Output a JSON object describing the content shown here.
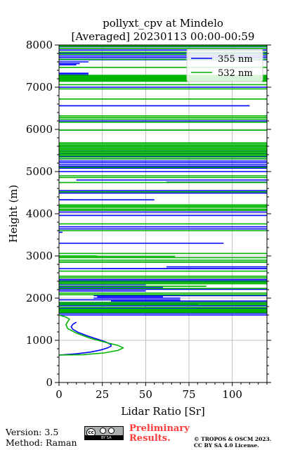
{
  "chart_data": {
    "type": "line",
    "title": [
      "pollyxt_cpv at Mindelo",
      "[Averaged] 20230113 00:00-00:59"
    ],
    "xlabel": "Lidar Ratio [Sr]",
    "ylabel": "Height (m)",
    "xlim": [
      0,
      120
    ],
    "ylim": [
      0,
      8000
    ],
    "xticks": [
      0,
      25,
      50,
      75,
      100
    ],
    "yticks": [
      0,
      1000,
      2000,
      3000,
      4000,
      5000,
      6000,
      7000,
      8000
    ],
    "xtick_labels": [
      "0",
      "25",
      "50",
      "75",
      "100"
    ],
    "ytick_labels": [
      "0",
      "1000",
      "2000",
      "3000",
      "4000",
      "5000",
      "6000",
      "7000",
      "8000"
    ],
    "grid": true,
    "legend_position": "top-right",
    "series": [
      {
        "name": "355 nm",
        "color": "#0000ff",
        "curve": [
          [
            0,
            650
          ],
          [
            10,
            680
          ],
          [
            18,
            720
          ],
          [
            24,
            770
          ],
          [
            28,
            820
          ],
          [
            30,
            860
          ],
          [
            30,
            900
          ],
          [
            27,
            960
          ],
          [
            22,
            1030
          ],
          [
            16,
            1110
          ],
          [
            11,
            1190
          ],
          [
            8,
            1260
          ],
          [
            7,
            1320
          ],
          [
            8,
            1380
          ],
          [
            10,
            1430
          ]
        ],
        "segments": [
          [
            0,
            120,
            7960
          ],
          [
            0,
            120,
            7880
          ],
          [
            0,
            120,
            7800
          ],
          [
            0,
            120,
            7780
          ],
          [
            0,
            120,
            7740
          ],
          [
            0,
            120,
            7700
          ],
          [
            0,
            120,
            7650
          ],
          [
            0,
            17,
            7600
          ],
          [
            0,
            12,
            7560
          ],
          [
            0,
            10,
            7530
          ],
          [
            0,
            17,
            7330
          ],
          [
            0,
            17,
            7300
          ],
          [
            0,
            120,
            7000
          ],
          [
            0,
            110,
            6560
          ],
          [
            0,
            120,
            6200
          ],
          [
            0,
            120,
            5620
          ],
          [
            0,
            120,
            5480
          ],
          [
            0,
            120,
            5420
          ],
          [
            0,
            120,
            5360
          ],
          [
            0,
            120,
            5300
          ],
          [
            0,
            120,
            5250
          ],
          [
            0,
            120,
            5210
          ],
          [
            0,
            120,
            5160
          ],
          [
            0,
            120,
            5120
          ],
          [
            0,
            120,
            5080
          ],
          [
            0,
            120,
            5000
          ],
          [
            10,
            120,
            4800
          ],
          [
            62,
            120,
            4750
          ],
          [
            0,
            120,
            4550
          ],
          [
            0,
            120,
            4490
          ],
          [
            0,
            8,
            4330
          ],
          [
            0,
            55,
            4330
          ],
          [
            0,
            120,
            4040
          ],
          [
            0,
            120,
            3960
          ],
          [
            0,
            120,
            3690
          ],
          [
            0,
            120,
            3640
          ],
          [
            0,
            2,
            3560
          ],
          [
            0,
            95,
            3300
          ],
          [
            0,
            120,
            2700
          ],
          [
            25,
            120,
            2700
          ],
          [
            62,
            120,
            2740
          ],
          [
            0,
            120,
            2440
          ],
          [
            0,
            120,
            2410
          ],
          [
            0,
            120,
            2380
          ],
          [
            0,
            50,
            2330
          ],
          [
            0,
            50,
            2290
          ],
          [
            0,
            60,
            2250
          ],
          [
            0,
            120,
            2210
          ],
          [
            0,
            50,
            2170
          ],
          [
            20,
            120,
            2060
          ],
          [
            22,
            60,
            2030
          ],
          [
            20,
            70,
            2000
          ],
          [
            0,
            70,
            1960
          ],
          [
            30,
            120,
            1930
          ],
          [
            0,
            120,
            1880
          ],
          [
            0,
            80,
            1850
          ],
          [
            0,
            120,
            1820
          ],
          [
            0,
            120,
            1760
          ],
          [
            0,
            120,
            1640
          ],
          [
            0,
            120,
            1600
          ]
        ]
      },
      {
        "name": "532 nm",
        "color": "#00b400",
        "curve": [
          [
            0,
            650
          ],
          [
            14,
            660
          ],
          [
            26,
            700
          ],
          [
            34,
            760
          ],
          [
            37,
            820
          ],
          [
            34,
            880
          ],
          [
            27,
            950
          ],
          [
            18,
            1050
          ],
          [
            10,
            1170
          ],
          [
            5,
            1280
          ],
          [
            4,
            1370
          ],
          [
            5,
            1440
          ],
          [
            6,
            1500
          ],
          [
            4,
            1550
          ],
          [
            0,
            1600
          ]
        ],
        "segments": [
          [
            0,
            120,
            7990
          ],
          [
            0,
            120,
            7970
          ],
          [
            0,
            120,
            7920
          ],
          [
            0,
            120,
            7830
          ],
          [
            0,
            120,
            7780
          ],
          [
            0,
            120,
            7660
          ],
          [
            0,
            120,
            7470
          ],
          [
            0,
            120,
            7280
          ],
          [
            0,
            120,
            7260
          ],
          [
            0,
            120,
            7240
          ],
          [
            0,
            120,
            7220
          ],
          [
            0,
            120,
            7200
          ],
          [
            0,
            120,
            7180
          ],
          [
            0,
            120,
            7160
          ],
          [
            0,
            120,
            7140
          ],
          [
            0,
            120,
            7060
          ],
          [
            0,
            120,
            6960
          ],
          [
            0,
            120,
            6720
          ],
          [
            0,
            120,
            6320
          ],
          [
            0,
            120,
            6280
          ],
          [
            0,
            120,
            6240
          ],
          [
            0,
            120,
            6170
          ],
          [
            0,
            120,
            5980
          ],
          [
            0,
            120,
            5680
          ],
          [
            0,
            120,
            5650
          ],
          [
            0,
            120,
            5620
          ],
          [
            0,
            120,
            5590
          ],
          [
            0,
            120,
            5560
          ],
          [
            0,
            120,
            5530
          ],
          [
            0,
            120,
            5500
          ],
          [
            0,
            120,
            5470
          ],
          [
            0,
            120,
            5440
          ],
          [
            0,
            120,
            5410
          ],
          [
            0,
            120,
            5380
          ],
          [
            0,
            120,
            5340
          ],
          [
            0,
            120,
            5300
          ],
          [
            0,
            120,
            5100
          ],
          [
            0,
            120,
            4900
          ],
          [
            0,
            120,
            4860
          ],
          [
            0,
            120,
            4740
          ],
          [
            0,
            120,
            4520
          ],
          [
            0,
            120,
            4210
          ],
          [
            0,
            120,
            4180
          ],
          [
            0,
            120,
            4150
          ],
          [
            0,
            120,
            4110
          ],
          [
            0,
            120,
            4080
          ],
          [
            0,
            120,
            3760
          ],
          [
            0,
            120,
            3600
          ],
          [
            0,
            120,
            3060
          ],
          [
            0,
            22,
            3000
          ],
          [
            0,
            67,
            2990
          ],
          [
            0,
            120,
            2960
          ],
          [
            0,
            120,
            2900
          ],
          [
            0,
            120,
            2860
          ],
          [
            0,
            120,
            2850
          ],
          [
            0,
            120,
            2640
          ],
          [
            0,
            120,
            2520
          ],
          [
            0,
            120,
            2480
          ],
          [
            0,
            120,
            2400
          ],
          [
            0,
            120,
            2370
          ],
          [
            0,
            120,
            2340
          ],
          [
            0,
            85,
            2280
          ],
          [
            0,
            120,
            2230
          ],
          [
            0,
            120,
            2120
          ],
          [
            0,
            120,
            2080
          ],
          [
            0,
            120,
            1900
          ],
          [
            0,
            120,
            1870
          ],
          [
            0,
            120,
            1840
          ],
          [
            0,
            120,
            1780
          ],
          [
            0,
            120,
            1740
          ],
          [
            0,
            120,
            1720
          ],
          [
            0,
            120,
            1700
          ],
          [
            0,
            120,
            1680
          ],
          [
            0,
            120,
            1660
          ]
        ]
      }
    ]
  },
  "footer": {
    "version": "Version: 3.5",
    "method": "Method: Raman",
    "prelim_line1": "Preliminary",
    "prelim_line2": "Results.",
    "copyright_line1": "© TROPOS & OSCM 2023.",
    "copyright_line2": "CC BY SA 4.0 License.",
    "license_badge": "BY SA"
  }
}
